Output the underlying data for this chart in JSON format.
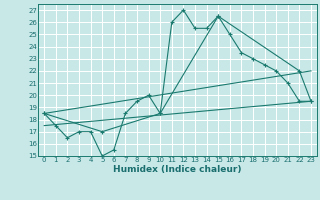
{
  "xlabel": "Humidex (Indice chaleur)",
  "xlim": [
    -0.5,
    23.5
  ],
  "ylim": [
    15,
    27.5
  ],
  "yticks": [
    15,
    16,
    17,
    18,
    19,
    20,
    21,
    22,
    23,
    24,
    25,
    26,
    27
  ],
  "xticks": [
    0,
    1,
    2,
    3,
    4,
    5,
    6,
    7,
    8,
    9,
    10,
    11,
    12,
    13,
    14,
    15,
    16,
    17,
    18,
    19,
    20,
    21,
    22,
    23
  ],
  "bg_color": "#c8e8e8",
  "grid_color": "#ffffff",
  "line_color": "#1a7a6e",
  "line1_x": [
    0,
    1,
    2,
    3,
    4,
    5,
    6,
    7,
    8,
    9,
    10,
    11,
    12,
    13,
    14,
    15,
    16,
    17,
    18,
    19,
    20,
    21,
    22,
    23
  ],
  "line1_y": [
    18.5,
    17.5,
    16.5,
    17.0,
    17.0,
    15.0,
    15.5,
    18.5,
    19.5,
    20.0,
    18.5,
    26.0,
    27.0,
    25.5,
    25.5,
    26.5,
    25.0,
    23.5,
    23.0,
    22.5,
    22.0,
    21.0,
    19.5,
    19.5
  ],
  "line2_x": [
    0,
    5,
    10,
    15,
    22,
    23
  ],
  "line2_y": [
    18.5,
    17.0,
    18.5,
    26.5,
    22.0,
    19.5
  ],
  "line3_x": [
    0,
    23
  ],
  "line3_y": [
    17.5,
    19.5
  ],
  "line4_x": [
    0,
    23
  ],
  "line4_y": [
    18.5,
    22.0
  ],
  "font_color": "#1a6e6e",
  "tick_fontsize": 5.0,
  "xlabel_fontsize": 6.5
}
